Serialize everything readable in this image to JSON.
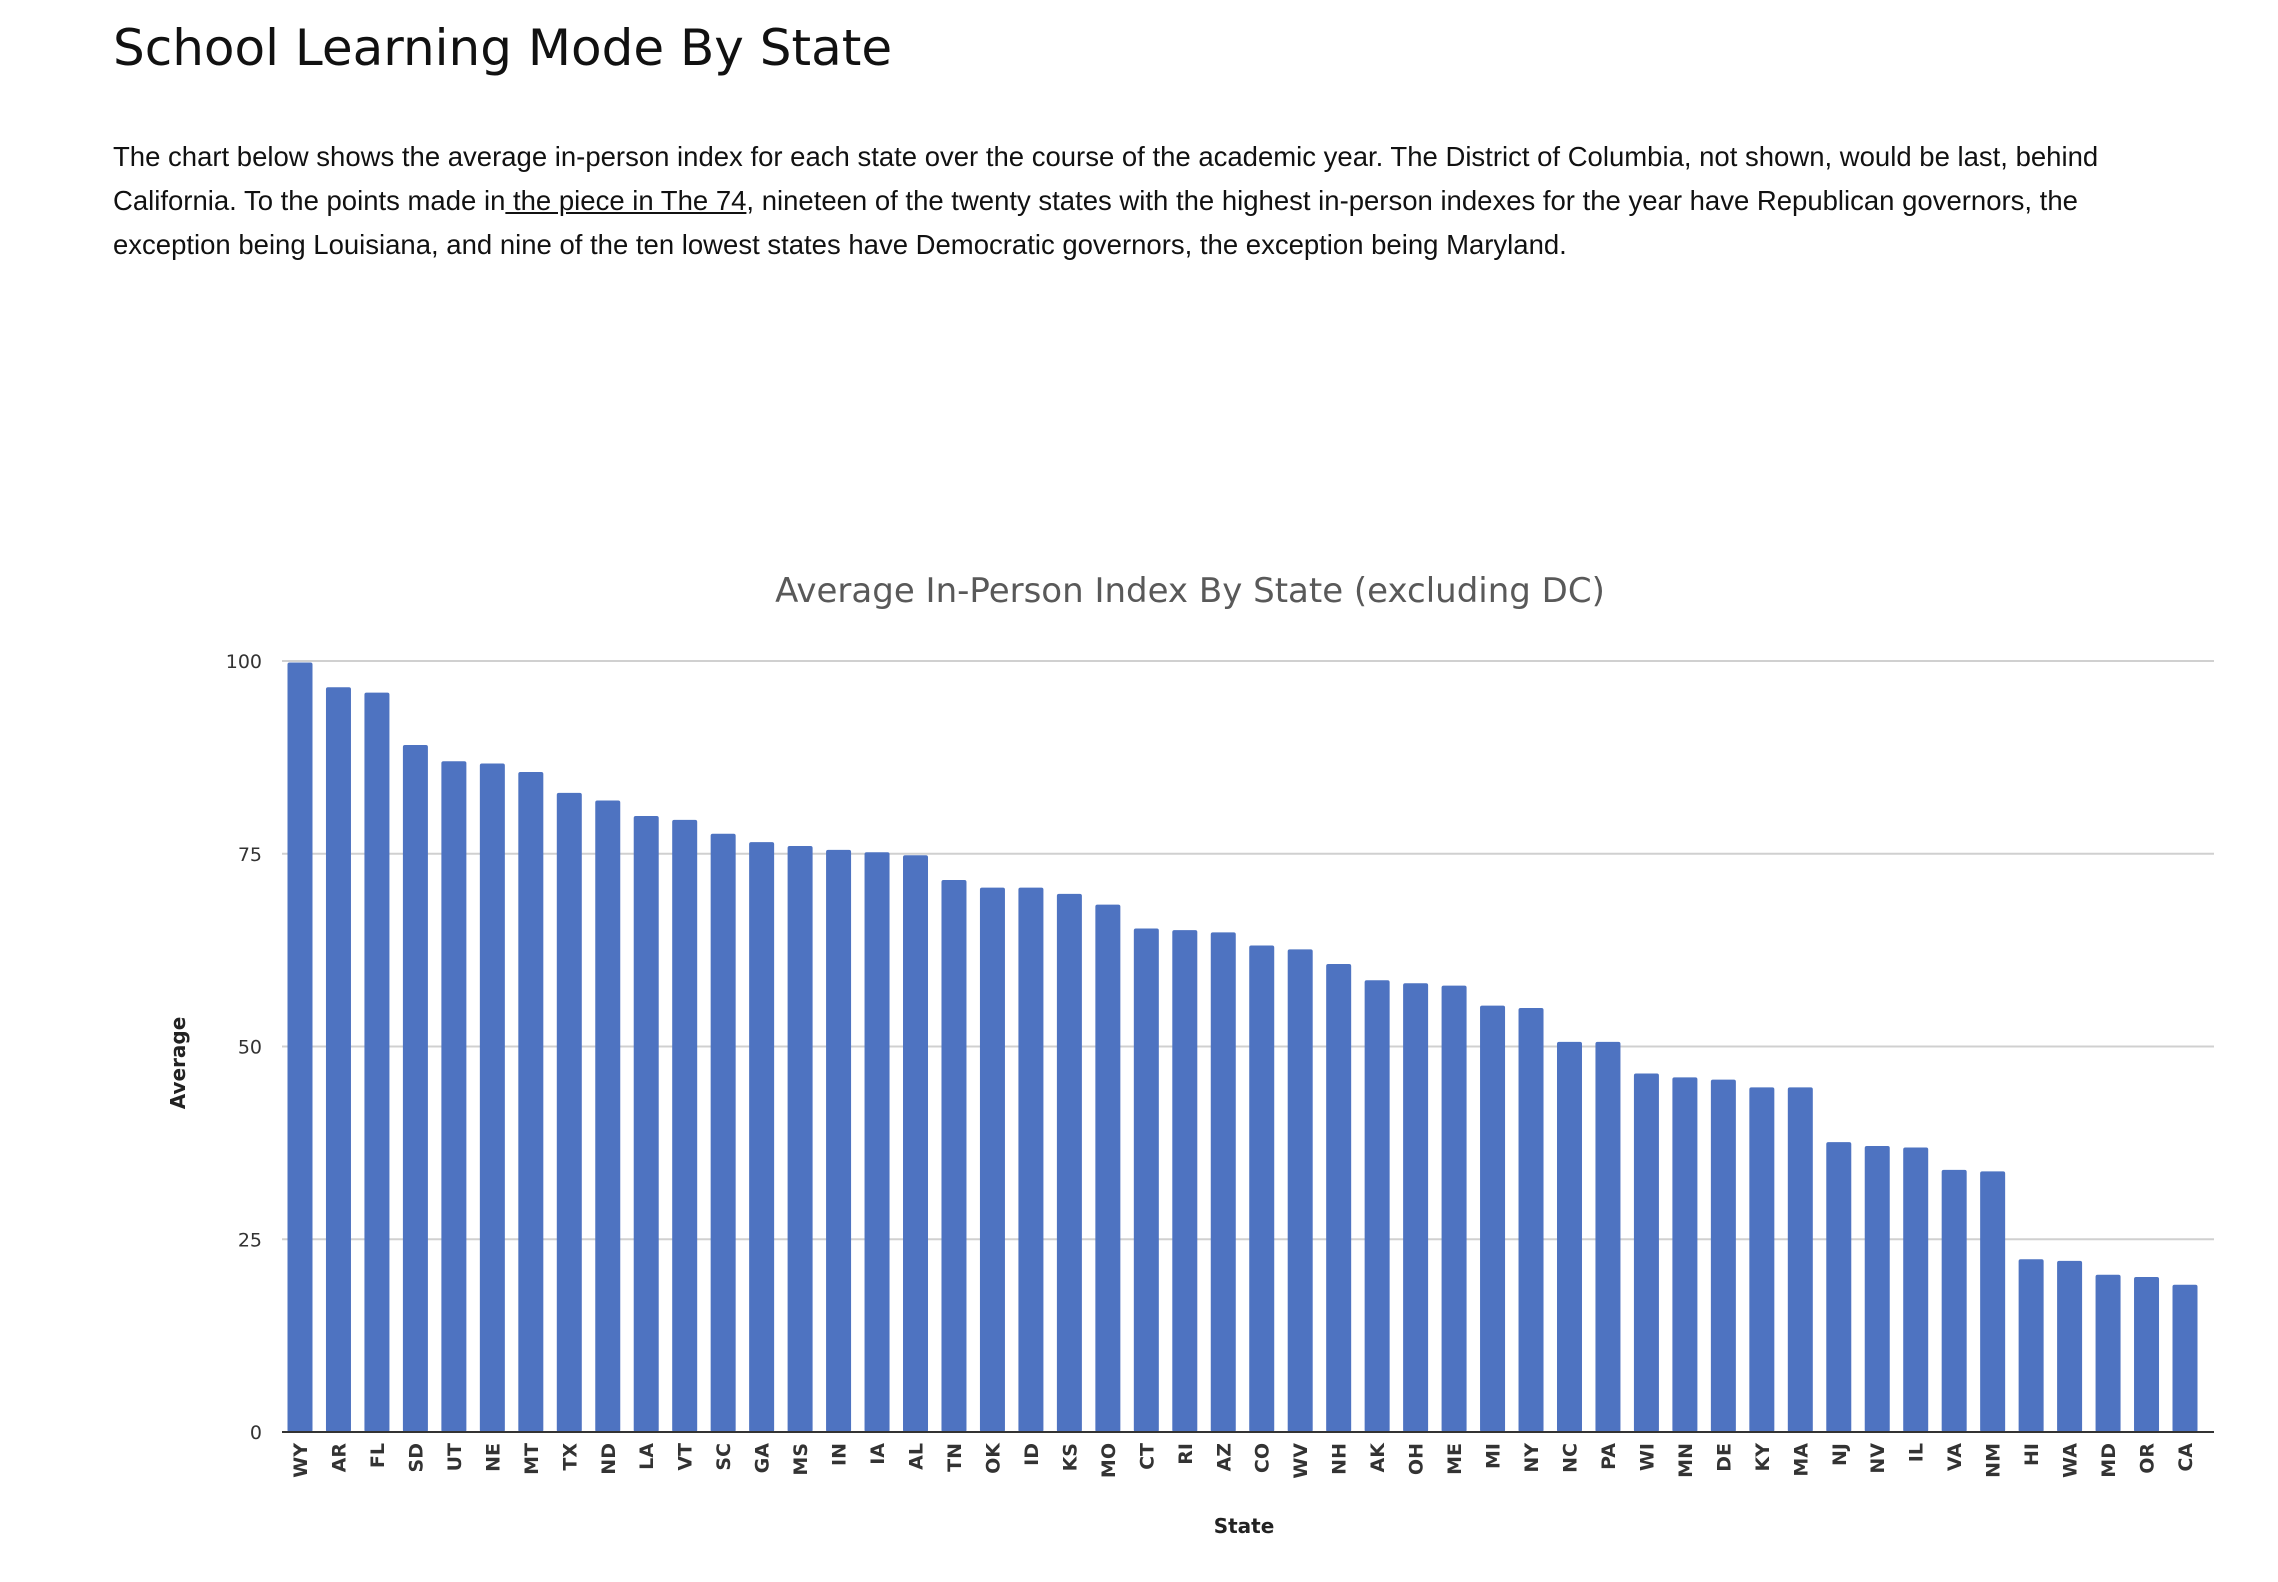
{
  "page": {
    "title": "School Learning Mode By State",
    "intro": {
      "before_link": "The chart below shows the average in-person index for each state over the course of the academic year. The District of Columbia, not shown, would be last, behind California. To the points made in",
      "link_text": " the piece in The 74",
      "after_link": ", nineteen of the twenty states with the highest in-person indexes for the year have Republican governors, the exception being Louisiana, and nine of the ten lowest states have Democratic governors, the exception being Maryland."
    }
  },
  "chart_data": {
    "type": "bar",
    "title": "Average In-Person Index By State (excluding DC)",
    "xlabel": "State",
    "ylabel": "Average",
    "ylim": [
      0,
      100
    ],
    "yticks": [
      0,
      25,
      50,
      75,
      100
    ],
    "grid": true,
    "legend": "none",
    "bar_color": "#4e73c1",
    "categories": [
      "WY",
      "AR",
      "FL",
      "SD",
      "UT",
      "NE",
      "MT",
      "TX",
      "ND",
      "LA",
      "VT",
      "SC",
      "GA",
      "MS",
      "IN",
      "IA",
      "AL",
      "TN",
      "OK",
      "ID",
      "KS",
      "MO",
      "CT",
      "RI",
      "AZ",
      "CO",
      "WV",
      "NH",
      "AK",
      "OH",
      "ME",
      "MI",
      "NY",
      "NC",
      "PA",
      "WI",
      "MN",
      "DE",
      "KY",
      "MA",
      "NJ",
      "NV",
      "IL",
      "VA",
      "NM",
      "HI",
      "WA",
      "MD",
      "OR",
      "CA"
    ],
    "values": [
      99.8,
      96.6,
      95.9,
      89.1,
      87.0,
      86.7,
      85.6,
      82.9,
      81.9,
      79.9,
      79.4,
      77.6,
      76.5,
      76.0,
      75.5,
      75.2,
      74.8,
      71.6,
      70.6,
      70.6,
      69.8,
      68.4,
      65.3,
      65.1,
      64.8,
      63.1,
      62.6,
      60.7,
      58.6,
      58.2,
      57.9,
      55.3,
      55.0,
      50.6,
      50.6,
      46.5,
      46.0,
      45.7,
      44.7,
      44.7,
      37.6,
      37.1,
      36.9,
      34.0,
      33.8,
      22.4,
      22.2,
      20.4,
      20.1,
      19.1
    ]
  }
}
